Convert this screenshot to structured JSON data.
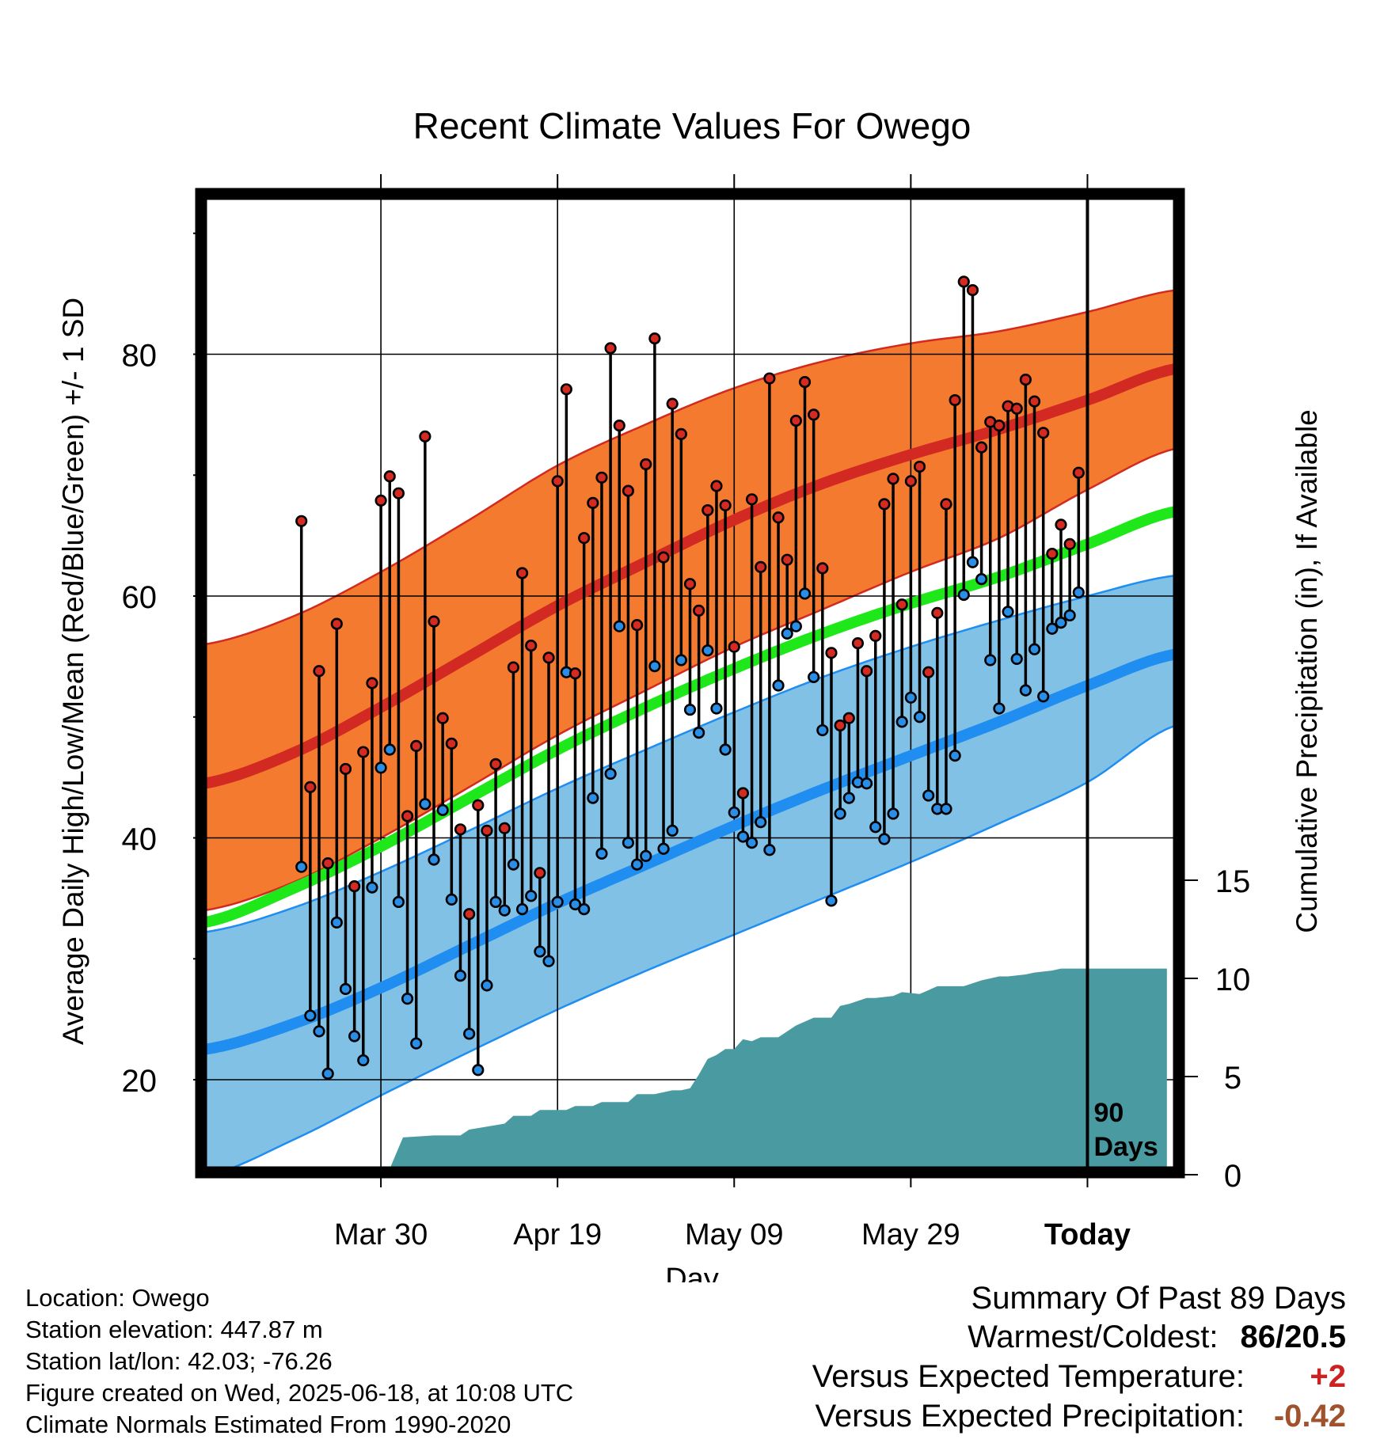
{
  "chart_data": {
    "type": "line",
    "title": "Recent Climate Values For Owego",
    "xlabel": "Day",
    "ylabel": "Average Daily High/Low/Mean (Red/Blue/Green) +/- 1 SD",
    "y2label": "Cumulative Precipitation (in), If Available",
    "x_range_days": [
      -100,
      10
    ],
    "ylim": [
      10,
      92
    ],
    "y2lim": [
      0,
      40
    ],
    "x_ticks": [
      {
        "day": -80,
        "label": "Mar 30",
        "bold": false
      },
      {
        "day": -60,
        "label": "Apr 19",
        "bold": false
      },
      {
        "day": -40,
        "label": "May 09",
        "bold": false
      },
      {
        "day": -20,
        "label": "May 29",
        "bold": false
      },
      {
        "day": 0,
        "label": "Today",
        "bold": true
      }
    ],
    "y_ticks": [
      20,
      40,
      60,
      80
    ],
    "y2_ticks": [
      0,
      5,
      10,
      15
    ],
    "today_marker_label": [
      "90",
      "Days"
    ],
    "grid": true,
    "colors": {
      "high_band": "#f47a30",
      "high_band_edge": "#d22a1e",
      "high_mean": "#d22a22",
      "low_band": "#82c1e6",
      "low_band_edge": "#1f8ef0",
      "low_mean": "#1f8ef0",
      "mean_line": "#1ee81a",
      "precip": "#4a9aa2",
      "high_dot": "#d42a22",
      "low_dot": "#2a8ee6"
    },
    "normals": {
      "days": [
        -100,
        -90,
        -80,
        -70,
        -60,
        -50,
        -40,
        -30,
        -20,
        -10,
        0,
        10
      ],
      "high_mean": [
        44.5,
        47,
        50.8,
        55,
        59.2,
        62.8,
        66.3,
        69.3,
        71.7,
        73.8,
        76.2,
        78.8
      ],
      "high_upper": [
        56,
        58.3,
        62,
        66.3,
        70.8,
        74.2,
        77.2,
        79.4,
        80.9,
        81.9,
        83.5,
        85.3
      ],
      "high_lower": [
        34,
        36.3,
        40,
        44.2,
        48.5,
        52.2,
        55.8,
        58.9,
        62,
        64.8,
        68.8,
        72.2
      ],
      "mean_line": [
        33,
        35.8,
        39.3,
        43.3,
        47.3,
        50.8,
        54,
        56.9,
        59.4,
        61.6,
        64.3,
        67
      ],
      "low_mean": [
        22.5,
        24.6,
        27.6,
        31.1,
        34.6,
        37.8,
        41,
        44,
        46.8,
        49.6,
        52.6,
        55.2
      ],
      "low_upper": [
        32.2,
        34.2,
        37.2,
        40.6,
        44.1,
        47.3,
        50.4,
        53.3,
        55.8,
        58,
        60,
        61.7
      ],
      "low_lower": [
        12,
        15,
        18.7,
        22.3,
        25.8,
        29,
        32,
        35,
        38,
        41.2,
        44.6,
        49.3
      ]
    },
    "series": [
      {
        "name": "High",
        "values": [
          66.2,
          44.2,
          53.8,
          37.9,
          57.7,
          45.7,
          36,
          47.1,
          52.8,
          67.9,
          69.9,
          68.5,
          41.8,
          47.6,
          73.2,
          57.9,
          49.9,
          47.8,
          40.7,
          33.7,
          42.7,
          40.6,
          46.1,
          40.8,
          54.1,
          61.9,
          55.9,
          37.1,
          54.9,
          69.5,
          77.1,
          53.6,
          64.8,
          67.7,
          69.8,
          80.5,
          74.1,
          68.7,
          57.6,
          70.9,
          81.3,
          63.2,
          75.9,
          73.4,
          61,
          58.8,
          67.1,
          69.1,
          67.5,
          55.8,
          43.7,
          68,
          62.4,
          78,
          66.5,
          63,
          74.5,
          77.7,
          75,
          62.3,
          55.3,
          49.3,
          49.9,
          56.1,
          53.8,
          56.7,
          67.6,
          69.7,
          59.3,
          69.5,
          70.7,
          53.7,
          58.6,
          67.6,
          76.2,
          86,
          85.3,
          72.3,
          74.4,
          74.1,
          75.7,
          75.5,
          77.9,
          76.1,
          73.5,
          63.5,
          65.9,
          64.3,
          70.2
        ]
      },
      {
        "name": "Low",
        "values": [
          37.6,
          25.3,
          24,
          20.5,
          33,
          27.5,
          23.6,
          21.6,
          35.9,
          45.8,
          47.3,
          34.7,
          26.7,
          23,
          42.8,
          38.2,
          42.3,
          34.9,
          28.6,
          23.8,
          20.8,
          27.8,
          34.7,
          34,
          37.8,
          34.1,
          35.2,
          30.6,
          29.8,
          34.7,
          53.7,
          34.5,
          34.1,
          43.3,
          38.7,
          45.3,
          57.5,
          39.6,
          37.8,
          38.5,
          54.2,
          39.1,
          40.6,
          54.7,
          50.6,
          48.7,
          55.5,
          50.7,
          47.3,
          42.1,
          40.1,
          39.6,
          41.3,
          39,
          52.6,
          56.9,
          57.5,
          60.2,
          53.3,
          48.9,
          34.8,
          42,
          43.3,
          44.6,
          44.5,
          40.9,
          39.9,
          42,
          49.6,
          51.6,
          50,
          43.5,
          42.4,
          42.4,
          46.8,
          60.1,
          62.8,
          61.4,
          54.7,
          50.7,
          58.7,
          54.8,
          52.2,
          55.6,
          51.7,
          57.3,
          57.8,
          58.4,
          60.3
        ]
      },
      {
        "name": "Cumulative Precipitation",
        "days": [
          -88,
          -84,
          -83,
          -79,
          -77.5,
          -74,
          -71,
          -70,
          -66,
          -65,
          -63,
          -62,
          -59,
          -58,
          -56,
          -55,
          -52,
          -51,
          -49,
          -47,
          -46,
          -45,
          -44,
          -43,
          -42,
          -41,
          -40,
          -39,
          -38,
          -37,
          -35,
          -33,
          -32,
          -31,
          -29,
          -28,
          -27,
          -25,
          -24,
          -22,
          -21,
          -19,
          -18,
          -17,
          -14,
          -12,
          -11,
          -10,
          -9,
          -7,
          -6,
          -4,
          -3,
          -1,
          9
        ],
        "values": [
          0,
          0,
          0.2,
          0.3,
          1.9,
          2.0,
          2.0,
          2.3,
          2.6,
          3.0,
          3.0,
          3.3,
          3.3,
          3.5,
          3.5,
          3.7,
          3.7,
          4.1,
          4.1,
          4.3,
          4.3,
          4.4,
          5.1,
          5.9,
          6.1,
          6.4,
          6.4,
          6.9,
          6.8,
          7.0,
          7.0,
          7.6,
          7.8,
          8.0,
          8.0,
          8.6,
          8.7,
          9.0,
          9.0,
          9.1,
          9.3,
          9.2,
          9.4,
          9.6,
          9.6,
          9.9,
          10.0,
          10.1,
          10.1,
          10.2,
          10.3,
          10.4,
          10.5,
          10.5,
          10.5
        ]
      }
    ]
  },
  "info": {
    "location": "Location: Owego",
    "elevation": "Station elevation: 447.87 m",
    "latlon": "Station lat/lon: 42.03; -76.26",
    "created": "Figure created on Wed, 2025-06-18, at 10:08 UTC",
    "normals": "Climate Normals Estimated From 1990-2020"
  },
  "summary": {
    "title": "Summary Of Past 89 Days",
    "rows": [
      {
        "label": "Warmest/Coldest:",
        "value": "86/20.5",
        "color": "#000000"
      },
      {
        "label": "Versus Expected Temperature:",
        "value": "+2",
        "color": "#cc2222"
      },
      {
        "label": "Versus Expected Precipitation:",
        "value": "-0.42",
        "color": "#a0522d"
      }
    ]
  }
}
